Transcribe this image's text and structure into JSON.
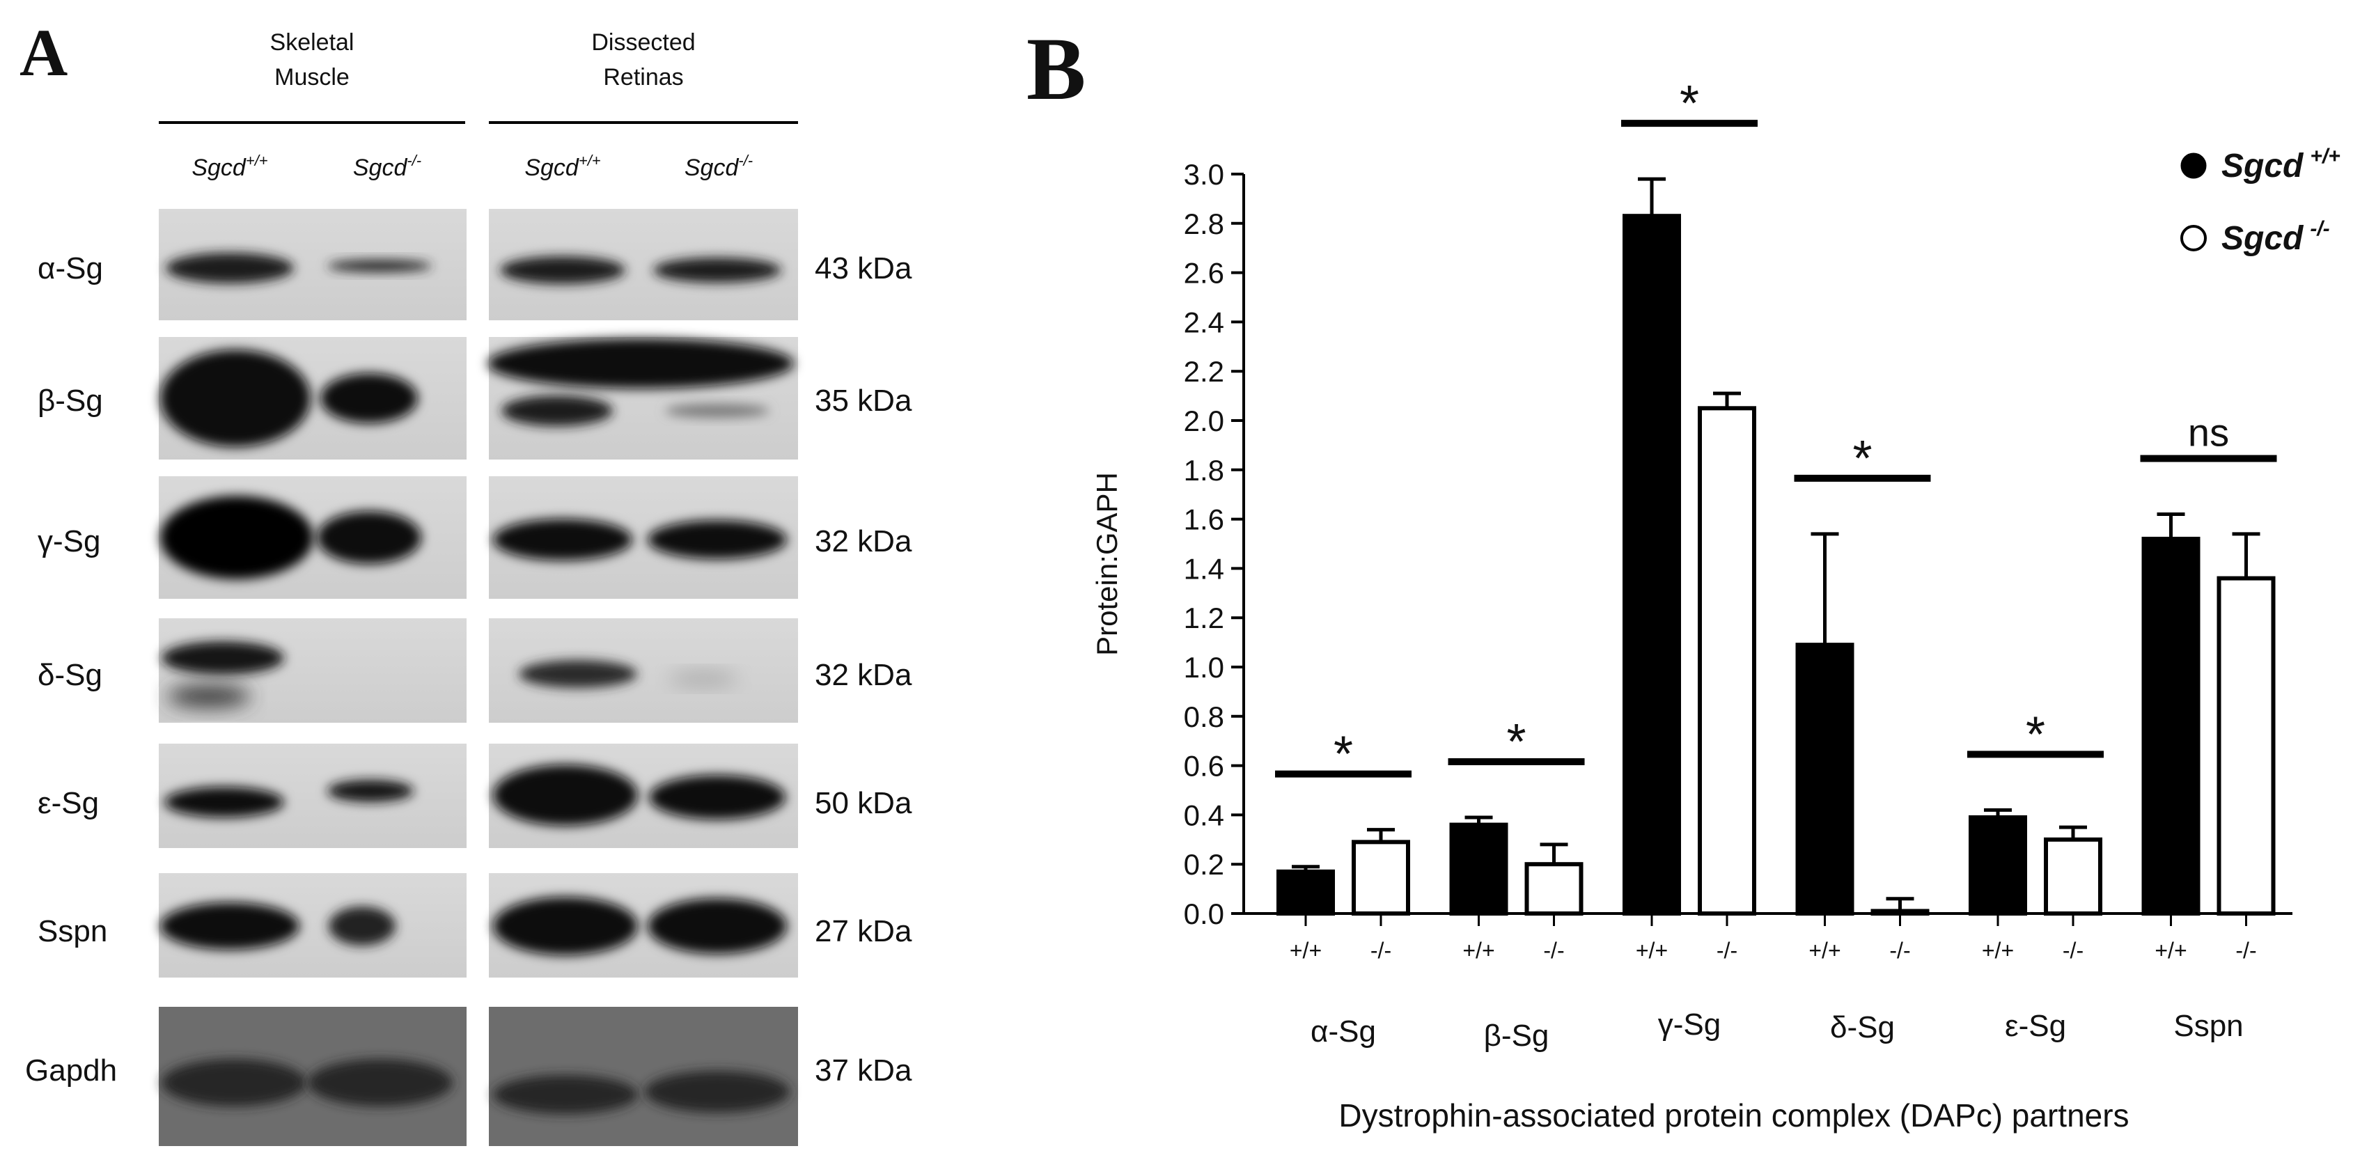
{
  "panel_a": {
    "letter": "A",
    "groups": [
      {
        "title_line1": "Skeletal",
        "title_line2": "Muscle"
      },
      {
        "title_line1": "Dissected",
        "title_line2": "Retinas"
      }
    ],
    "genotypes": [
      {
        "base": "Sgcd",
        "sup": "+/+"
      },
      {
        "base": "Sgcd",
        "sup": "-/-"
      },
      {
        "base": "Sgcd",
        "sup": "+/+"
      },
      {
        "base": "Sgcd",
        "sup": "-/-"
      }
    ],
    "rows": [
      {
        "label": "α-Sg",
        "kda": "43 kDa"
      },
      {
        "label": "β-Sg",
        "kda": "35 kDa"
      },
      {
        "label": "γ-Sg",
        "kda": "32 kDa"
      },
      {
        "label": "δ-Sg",
        "kda": "32 kDa"
      },
      {
        "label": "ε-Sg",
        "kda": "50 kDa"
      },
      {
        "label": "Sspn",
        "kda": "27 kDa"
      },
      {
        "label": "Gapdh",
        "kda": "37 kDa"
      }
    ]
  },
  "panel_b": {
    "letter": "B",
    "legend": [
      {
        "base": "Sgcd",
        "sup": "+/+",
        "color": "#000000"
      },
      {
        "base": "Sgcd",
        "sup": "-/-",
        "color": "#ffffff"
      }
    ]
  },
  "chart_data": {
    "type": "bar",
    "ylabel": "Protein:GAPH",
    "xlabel": "Dystrophin-associated protein complex (DAPc) partners",
    "ylim": [
      0,
      3.0
    ],
    "ytick_step": 0.2,
    "yticks": [
      "0.0",
      "0.2",
      "0.4",
      "0.6",
      "0.8",
      "1.0",
      "1.2",
      "1.4",
      "1.6",
      "1.8",
      "2.0",
      "2.2",
      "2.4",
      "2.6",
      "2.8",
      "3.0"
    ],
    "categories": [
      "α-Sg",
      "β-Sg",
      "γ-Sg",
      "δ-Sg",
      "ε-Sg",
      "Sspn"
    ],
    "bar_sublabels": [
      "+/+",
      "-/-"
    ],
    "series": [
      {
        "name": "Sgcd +/+",
        "color": "#000000",
        "values": [
          0.17,
          0.36,
          2.83,
          1.09,
          0.39,
          1.52
        ],
        "errors": [
          0.02,
          0.03,
          0.15,
          0.45,
          0.03,
          0.1
        ]
      },
      {
        "name": "Sgcd -/-",
        "color": "#ffffff",
        "values": [
          0.29,
          0.2,
          2.05,
          0.01,
          0.3,
          1.36
        ],
        "errors": [
          0.05,
          0.08,
          0.06,
          0.05,
          0.05,
          0.18
        ]
      }
    ],
    "significance": [
      "*",
      "*",
      "*",
      "*",
      "*",
      "ns"
    ],
    "legend_position": "top-right",
    "grid": false
  }
}
